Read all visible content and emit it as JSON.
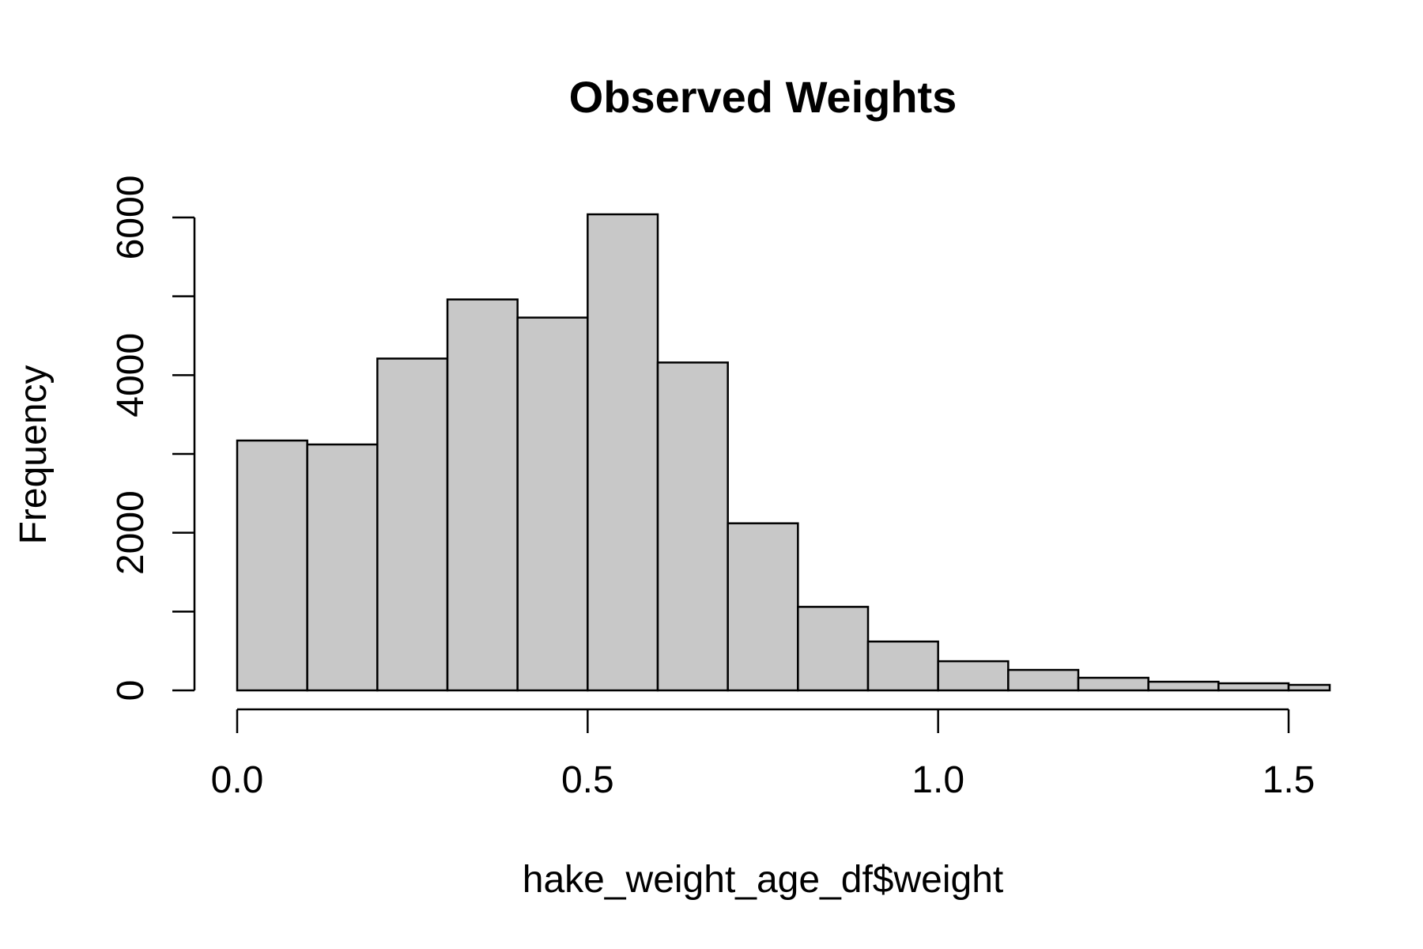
{
  "chart_data": {
    "type": "bar",
    "subtype": "histogram",
    "title": "Observed Weights",
    "xlabel": "hake_weight_age_df$weight",
    "ylabel": "Frequency",
    "bin_edges": [
      0.0,
      0.1,
      0.2,
      0.3,
      0.4,
      0.5,
      0.6,
      0.7,
      0.8,
      0.9,
      1.0,
      1.1,
      1.2,
      1.3,
      1.4,
      1.5,
      1.6
    ],
    "values": [
      3170,
      3120,
      4210,
      4960,
      4730,
      6040,
      4160,
      2120,
      1060,
      620,
      370,
      260,
      160,
      110,
      90,
      70
    ],
    "xlim": [
      0.0,
      1.6
    ],
    "ylim": [
      0,
      6000
    ],
    "x_ticks": [
      0.0,
      0.5,
      1.0,
      1.5
    ],
    "x_tick_labels": [
      "0.0",
      "0.5",
      "1.0",
      "1.5"
    ],
    "y_ticks": [
      0,
      1000,
      2000,
      3000,
      4000,
      5000,
      6000
    ],
    "y_tick_labels": [
      "0",
      "",
      "2000",
      "",
      "4000",
      "",
      "6000"
    ],
    "bar_color": "#c8c8c8",
    "edge_color": "#000000",
    "grid": false
  }
}
